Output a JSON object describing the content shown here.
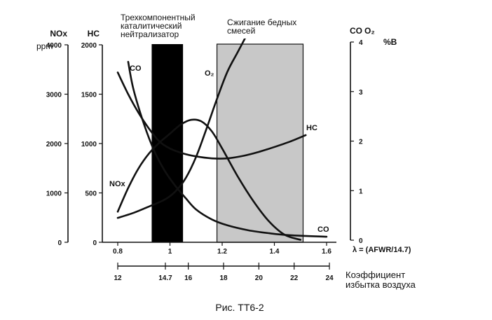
{
  "chart_data": {
    "type": "line",
    "x_axis": {
      "label": "λ = (AFWR/14.7)",
      "range": [
        0.8,
        1.6
      ],
      "ticks": [
        "0.8",
        "1",
        "1.2",
        "1.4",
        "1.6"
      ],
      "tick_values": [
        0.8,
        1.0,
        1.2,
        1.4,
        1.6
      ]
    },
    "ratio_axis": {
      "label": "Коэффициент избытка воздуха",
      "ticks": [
        "12",
        "14.7",
        "16",
        "18",
        "20",
        "22",
        "24"
      ],
      "tick_values": [
        12,
        14.7,
        16,
        18,
        20,
        22,
        24
      ]
    },
    "axes": {
      "nox": {
        "label": "NOx",
        "unit": "ppm",
        "range": [
          0,
          4000
        ],
        "ticks": [
          "0",
          "1000",
          "2000",
          "3000",
          "4000"
        ],
        "tick_values": [
          0,
          1000,
          2000,
          3000,
          4000
        ]
      },
      "hc": {
        "label": "HC",
        "range": [
          0,
          2000
        ],
        "ticks": [
          "0",
          "500",
          "1000",
          "1500",
          "2000"
        ],
        "tick_values": [
          0,
          500,
          1000,
          1500,
          2000
        ]
      },
      "co_o2": {
        "label": "CO",
        "label2": "O₂",
        "unit": "%В",
        "range": [
          0,
          4
        ],
        "ticks": [
          "0",
          "1",
          "2",
          "3",
          "4"
        ],
        "tick_values": [
          0,
          1,
          2,
          3,
          4
        ]
      }
    },
    "regions": [
      {
        "label": "Трехкомпонентный каталитический нейтрализатор",
        "lines": [
          "Трехкомпонентный",
          "каталитический",
          "нейтрализатор"
        ],
        "x_range": [
          0.93,
          1.05
        ],
        "fill": "#000000"
      },
      {
        "label": "Сжигание бедных смесей",
        "lines": [
          "Сжигание бедных",
          "смесей"
        ],
        "x_range": [
          1.18,
          1.51
        ],
        "fill": "#c8c8c8"
      }
    ],
    "series": [
      {
        "name": "CO",
        "label_primary": "CO",
        "label_secondary": "CO",
        "axis": "co_o2",
        "x": [
          0.84,
          0.86,
          0.9,
          0.94,
          0.98,
          1.02,
          1.06,
          1.1,
          1.16,
          1.22,
          1.3,
          1.38,
          1.46,
          1.6
        ],
        "y": [
          3.6,
          3.05,
          2.35,
          1.8,
          1.4,
          1.1,
          0.85,
          0.62,
          0.42,
          0.3,
          0.2,
          0.14,
          0.1,
          0.07
        ]
      },
      {
        "name": "HC",
        "label": "HC",
        "axis": "hc",
        "x": [
          0.8,
          0.84,
          0.88,
          0.92,
          0.96,
          1.0,
          1.05,
          1.1,
          1.16,
          1.22,
          1.28,
          1.34,
          1.4,
          1.46,
          1.52
        ],
        "y": [
          1720,
          1500,
          1310,
          1150,
          1020,
          950,
          900,
          870,
          850,
          850,
          875,
          915,
          965,
          1020,
          1085
        ]
      },
      {
        "name": "NOx",
        "label": "NOx",
        "axis": "nox",
        "x": [
          0.8,
          0.84,
          0.88,
          0.92,
          0.96,
          1.0,
          1.04,
          1.08,
          1.12,
          1.16,
          1.2,
          1.26,
          1.32,
          1.38,
          1.44,
          1.5
        ],
        "y": [
          620,
          1100,
          1500,
          1800,
          2020,
          2200,
          2380,
          2480,
          2450,
          2250,
          1900,
          1330,
          830,
          420,
          150,
          50
        ]
      },
      {
        "name": "O₂",
        "label": "O₂",
        "axis": "co_o2",
        "x": [
          0.8,
          0.86,
          0.92,
          0.98,
          1.02,
          1.06,
          1.1,
          1.14,
          1.18,
          1.22,
          1.26,
          1.3
        ],
        "y": [
          0.45,
          0.55,
          0.68,
          0.82,
          0.98,
          1.25,
          1.68,
          2.25,
          2.85,
          3.4,
          3.8,
          4.2
        ]
      }
    ]
  },
  "caption": "Рис. ТТ6-2"
}
